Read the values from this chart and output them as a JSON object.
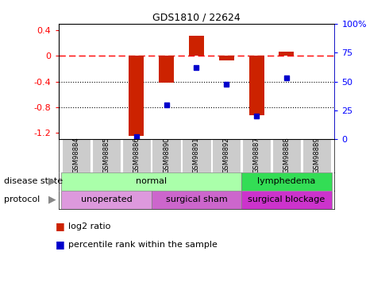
{
  "title": "GDS1810 / 22624",
  "samples": [
    "GSM98884",
    "GSM98885",
    "GSM98886",
    "GSM98890",
    "GSM98891",
    "GSM98892",
    "GSM98887",
    "GSM98888",
    "GSM98889"
  ],
  "log2_ratio": [
    0,
    0,
    -1.25,
    -0.42,
    0.32,
    -0.07,
    -0.92,
    0.07,
    0
  ],
  "percentile_rank": [
    null,
    null,
    2,
    30,
    62,
    48,
    20,
    53,
    null
  ],
  "ylim_left": [
    -1.3,
    0.5
  ],
  "ylim_right": [
    0,
    100
  ],
  "yticks_left": [
    -1.2,
    -0.8,
    -0.4,
    0,
    0.4
  ],
  "yticks_right": [
    0,
    25,
    50,
    75,
    100
  ],
  "bar_color": "#cc2200",
  "dot_color": "#0000cc",
  "disease_state_groups": [
    {
      "label": "normal",
      "start": 0,
      "end": 6,
      "color": "#aaffaa"
    },
    {
      "label": "lymphedema",
      "start": 6,
      "end": 9,
      "color": "#33dd55"
    }
  ],
  "protocol_groups": [
    {
      "label": "unoperated",
      "start": 0,
      "end": 3,
      "color": "#dd99dd"
    },
    {
      "label": "surgical sham",
      "start": 3,
      "end": 6,
      "color": "#cc66cc"
    },
    {
      "label": "surgical blockage",
      "start": 6,
      "end": 9,
      "color": "#cc33cc"
    }
  ],
  "legend_log2": "log2 ratio",
  "legend_pct": "percentile rank within the sample",
  "disease_state_label": "disease state",
  "protocol_label": "protocol",
  "tick_label_bg": "#cccccc",
  "bar_width": 0.5
}
